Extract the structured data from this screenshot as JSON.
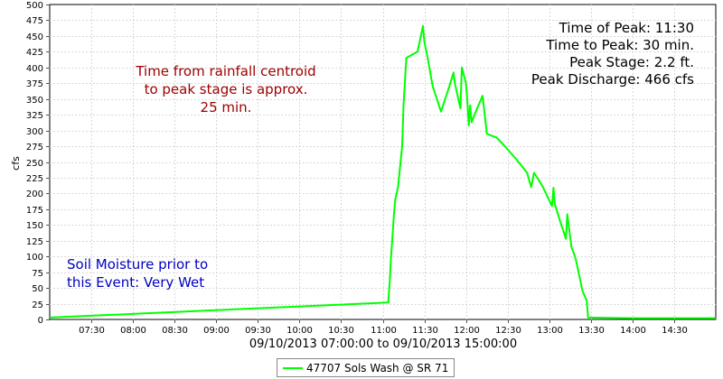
{
  "chart_data": {
    "type": "line",
    "ylabel": "cfs",
    "xlabel": "09/10/2013 07:00:00 to 09/10/2013 15:00:00",
    "xlim": [
      "07:00",
      "15:00"
    ],
    "ylim": [
      0,
      500
    ],
    "y_ticks": [
      0,
      25,
      50,
      75,
      100,
      125,
      150,
      175,
      200,
      225,
      250,
      275,
      300,
      325,
      350,
      375,
      400,
      425,
      450,
      475,
      500
    ],
    "x_ticks": [
      "07:30",
      "08:00",
      "08:30",
      "09:00",
      "09:30",
      "10:00",
      "10:30",
      "11:00",
      "11:30",
      "12:00",
      "12:30",
      "13:00",
      "13:30",
      "14:00",
      "14:30"
    ],
    "grid": true,
    "legend_position": "bottom-center",
    "series": [
      {
        "name": "47707 Sols Wash @ SR 71",
        "color": "#00ff00",
        "x": [
          "07:00",
          "11:04",
          "11:05",
          "11:06",
          "11:07",
          "11:08",
          "11:09",
          "11:11",
          "11:14",
          "11:15",
          "11:17",
          "11:21",
          "11:25",
          "11:27",
          "11:29",
          "11:30",
          "11:32",
          "11:36",
          "11:42",
          "11:48",
          "11:51",
          "11:52",
          "11:55",
          "11:56",
          "11:57",
          "12:00",
          "12:01",
          "12:02",
          "12:03",
          "12:04",
          "12:08",
          "12:12",
          "12:15",
          "12:18",
          "12:22",
          "12:28",
          "12:36",
          "12:44",
          "12:47",
          "12:49",
          "12:55",
          "13:02",
          "13:03",
          "13:04",
          "13:08",
          "13:12",
          "13:13",
          "13:16",
          "13:19",
          "13:24",
          "13:27",
          "13:28",
          "14:00",
          "15:00"
        ],
        "values": [
          3,
          27,
          60,
          100,
          130,
          165,
          190,
          210,
          275,
          340,
          415,
          420,
          425,
          445,
          466,
          440,
          420,
          370,
          330,
          370,
          392,
          375,
          345,
          335,
          400,
          375,
          345,
          308,
          340,
          313,
          335,
          355,
          295,
          292,
          289,
          275,
          255,
          233,
          210,
          233,
          212,
          180,
          209,
          183,
          155,
          128,
          167,
          115,
          97,
          45,
          30,
          3,
          2,
          2
        ]
      }
    ]
  },
  "annotations": {
    "peak_info": [
      "Time of Peak: 11:30",
      "Time to Peak: 30 min.",
      "Peak Stage: 2.2 ft.",
      "Peak Discharge: 466 cfs"
    ],
    "centroid_note": [
      "Time from rainfall centroid",
      "to peak stage is approx.",
      "25 min."
    ],
    "soil_note": [
      "Soil Moisture prior to",
      "this Event: Very Wet"
    ]
  },
  "legend": {
    "label": "47707 Sols Wash @ SR 71"
  }
}
